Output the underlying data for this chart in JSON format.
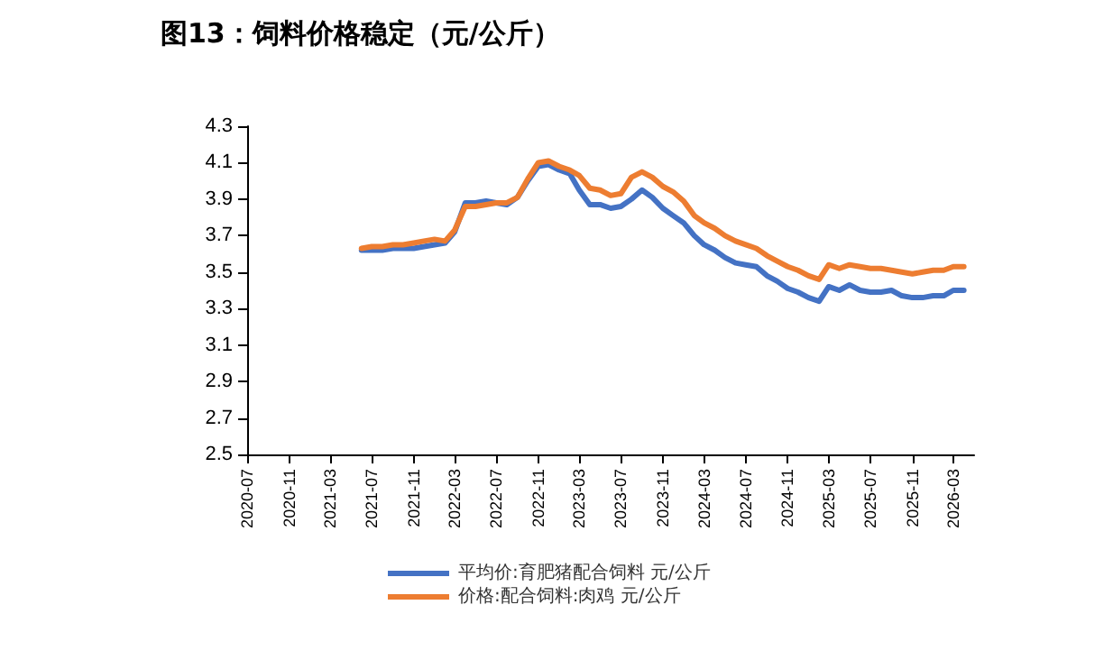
{
  "chart_data": {
    "type": "line",
    "title": "图13：饲料价格稳定（元/公斤）",
    "x": [
      "2021-06",
      "2021-07",
      "2021-08",
      "2021-09",
      "2021-10",
      "2021-11",
      "2021-12",
      "2022-01",
      "2022-02",
      "2022-03",
      "2022-04",
      "2022-05",
      "2022-06",
      "2022-07",
      "2022-08",
      "2022-09",
      "2022-10",
      "2022-11",
      "2022-12",
      "2023-01",
      "2023-02",
      "2023-03",
      "2023-04",
      "2023-05",
      "2023-06",
      "2023-07",
      "2023-08",
      "2023-09",
      "2023-10",
      "2023-11",
      "2023-12",
      "2024-01",
      "2024-02",
      "2024-03",
      "2024-04",
      "2024-05",
      "2024-06",
      "2024-07",
      "2024-08",
      "2024-09",
      "2024-10",
      "2024-11",
      "2024-12",
      "2025-01",
      "2025-02",
      "2025-03",
      "2025-04",
      "2025-05",
      "2025-06",
      "2025-07",
      "2025-08",
      "2025-09",
      "2025-10",
      "2025-11",
      "2025-12",
      "2026-01",
      "2026-02",
      "2026-03",
      "2026-04"
    ],
    "series": [
      {
        "name": "平均价:育肥猪配合饲料 元/公斤",
        "color": "#4472c4",
        "values": [
          3.62,
          3.62,
          3.62,
          3.63,
          3.63,
          3.63,
          3.64,
          3.65,
          3.66,
          3.72,
          3.88,
          3.88,
          3.89,
          3.88,
          3.87,
          3.91,
          4.0,
          4.08,
          4.09,
          4.06,
          4.04,
          3.95,
          3.87,
          3.87,
          3.85,
          3.86,
          3.9,
          3.95,
          3.91,
          3.85,
          3.81,
          3.77,
          3.7,
          3.65,
          3.62,
          3.58,
          3.55,
          3.54,
          3.53,
          3.48,
          3.45,
          3.41,
          3.39,
          3.36,
          3.34,
          3.42,
          3.4,
          3.43,
          3.4,
          3.39,
          3.39,
          3.4,
          3.37,
          3.36,
          3.36,
          3.37,
          3.37,
          3.4,
          3.4
        ]
      },
      {
        "name": "价格:配合饲料:肉鸡 元/公斤",
        "color": "#ed7d31",
        "values": [
          3.63,
          3.64,
          3.64,
          3.65,
          3.65,
          3.66,
          3.67,
          3.68,
          3.67,
          3.73,
          3.86,
          3.86,
          3.87,
          3.88,
          3.88,
          3.91,
          4.01,
          4.1,
          4.11,
          4.08,
          4.06,
          4.03,
          3.96,
          3.95,
          3.92,
          3.93,
          4.02,
          4.05,
          4.02,
          3.97,
          3.94,
          3.89,
          3.81,
          3.77,
          3.74,
          3.7,
          3.67,
          3.65,
          3.63,
          3.59,
          3.56,
          3.53,
          3.51,
          3.48,
          3.46,
          3.54,
          3.52,
          3.54,
          3.53,
          3.52,
          3.52,
          3.51,
          3.5,
          3.49,
          3.5,
          3.51,
          3.51,
          3.53,
          3.53
        ]
      }
    ],
    "xlim": [
      "2020-07",
      "2026-05"
    ],
    "xticks": [
      {
        "value": "2020-07",
        "label": "2020-07"
      },
      {
        "value": "2020-11",
        "label": "2020-11"
      },
      {
        "value": "2021-03",
        "label": "2021-03"
      },
      {
        "value": "2021-07",
        "label": "2021-07"
      },
      {
        "value": "2021-11",
        "label": "2021-11"
      },
      {
        "value": "2022-03",
        "label": "2022-03"
      },
      {
        "value": "2022-07",
        "label": "2022-07"
      },
      {
        "value": "2022-11",
        "label": "2022-11"
      },
      {
        "value": "2023-03",
        "label": "2023-03"
      },
      {
        "value": "2023-07",
        "label": "2023-07"
      },
      {
        "value": "2023-11",
        "label": "2023-11"
      },
      {
        "value": "2024-03",
        "label": "2024-03"
      },
      {
        "value": "2024-07",
        "label": "2024-07"
      },
      {
        "value": "2024-11",
        "label": "2024-11"
      },
      {
        "value": "2025-03",
        "label": "2025-03"
      },
      {
        "value": "2025-07",
        "label": "2025-07"
      },
      {
        "value": "2025-11",
        "label": "2025-11"
      },
      {
        "value": "2026-03",
        "label": "2026-03"
      }
    ],
    "ylim": [
      2.5,
      4.3
    ],
    "yticks": [
      2.5,
      2.7,
      2.9,
      3.1,
      3.3,
      3.5,
      3.7,
      3.9,
      4.1,
      4.3
    ],
    "grid": false,
    "legend": "bottom",
    "marker": "none",
    "line_style": "solid"
  }
}
